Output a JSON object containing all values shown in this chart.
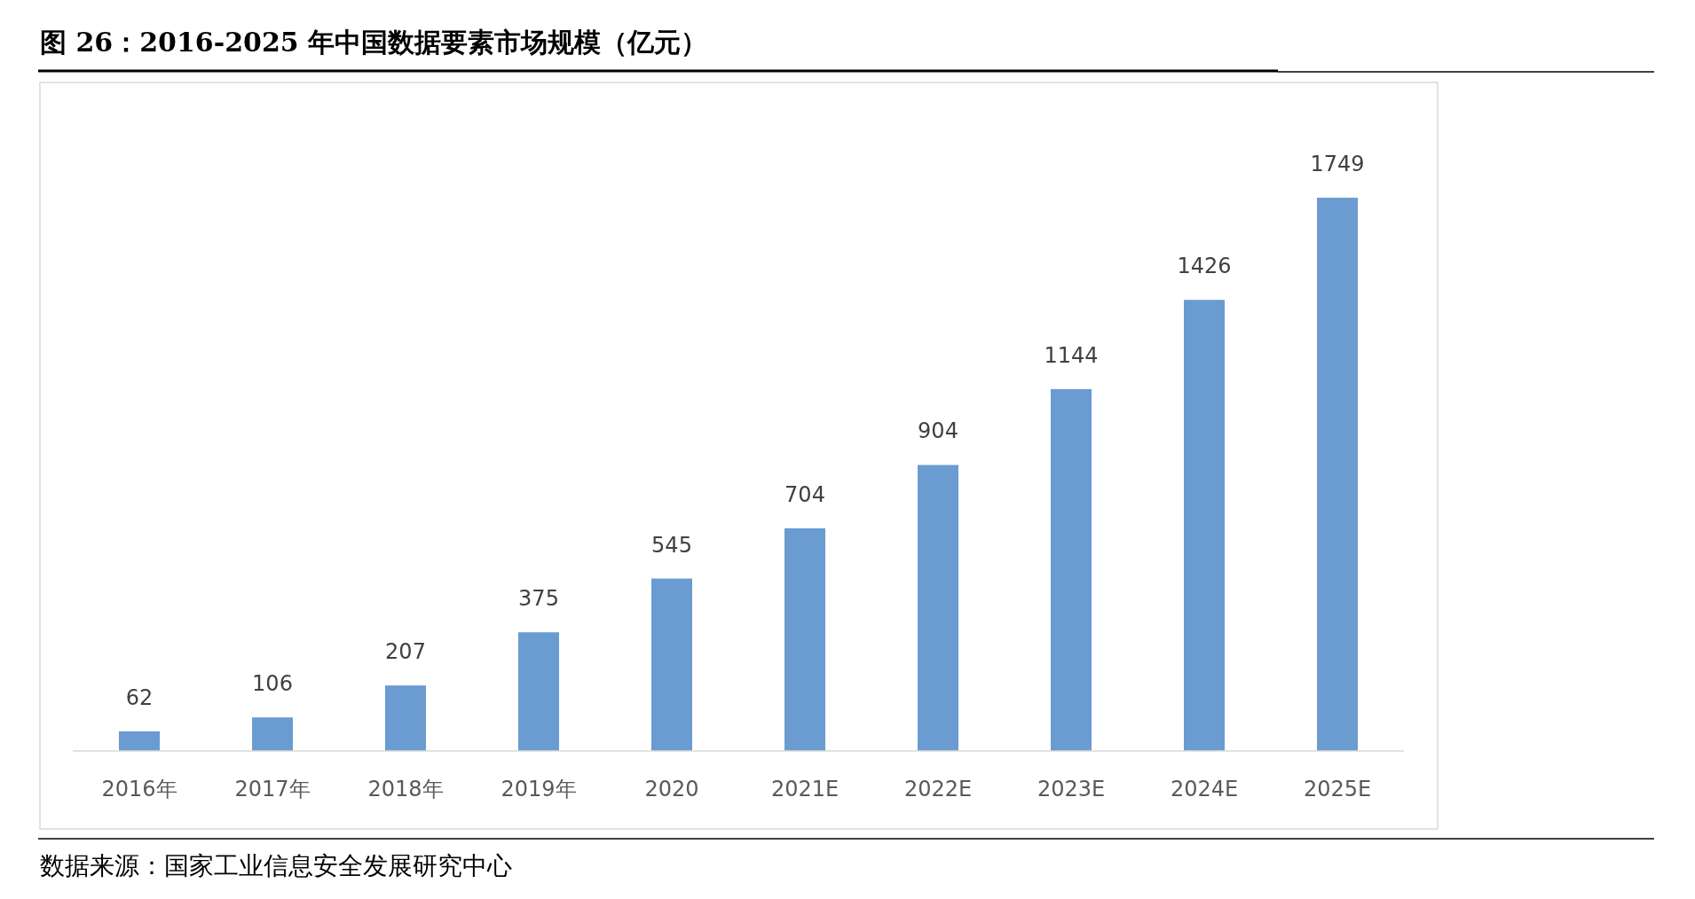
{
  "chart_data": {
    "type": "bar",
    "title": "图 26：2016-2025 年中国数据要素市场规模（亿元）",
    "categories": [
      "2016年",
      "2017年",
      "2018年",
      "2019年",
      "2020",
      "2021E",
      "2022E",
      "2023E",
      "2024E",
      "2025E"
    ],
    "values": [
      62,
      106,
      207,
      375,
      545,
      704,
      904,
      1144,
      1426,
      1749
    ],
    "color": "#6a9bd1",
    "data_labels": true,
    "annotations": [
      "数据来源：国家工业信息安全发展研究中心"
    ]
  }
}
